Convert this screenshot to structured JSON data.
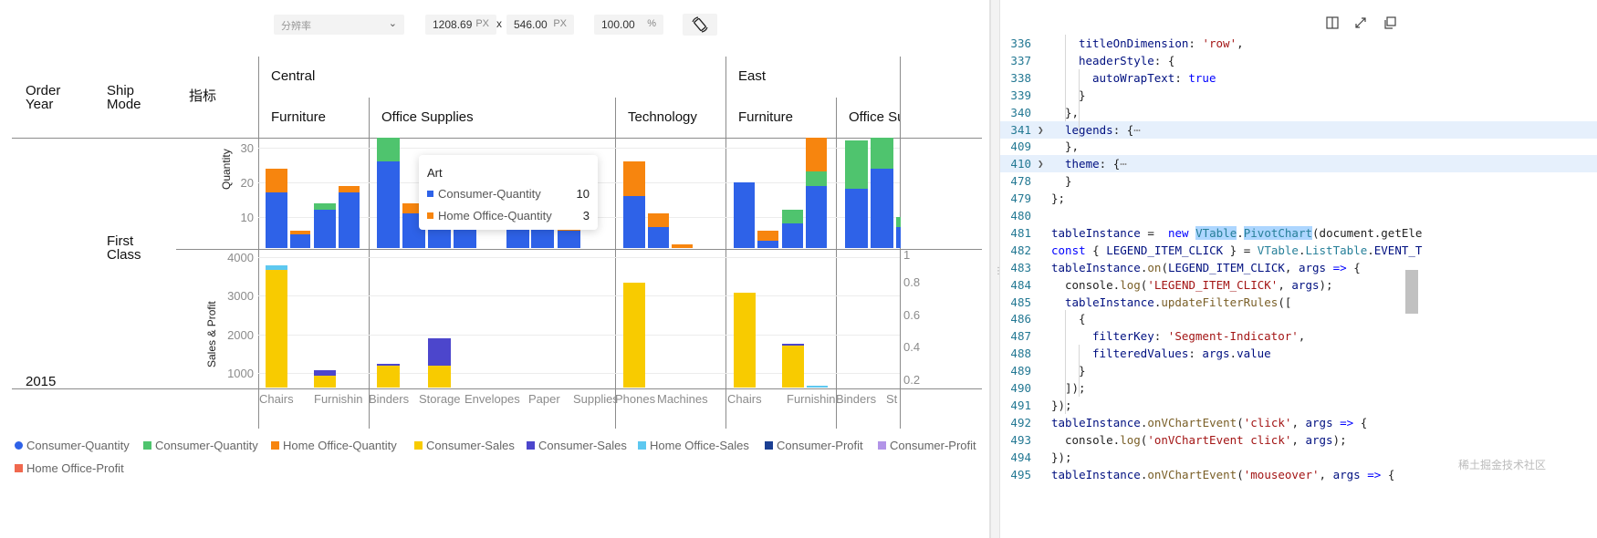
{
  "toolbar": {
    "resolution_placeholder": "分辨率",
    "width_value": "1208.69",
    "width_unit": "PX",
    "times": "x",
    "height_value": "546.00",
    "height_unit": "PX",
    "zoom_value": "100.00",
    "zoom_unit": "%"
  },
  "table": {
    "row_headers": [
      "Order\nYear",
      "Ship\nMode",
      "指标"
    ],
    "regions": [
      "Central",
      "East"
    ],
    "categories": [
      "Furniture",
      "Office Supplies",
      "Technology",
      "Furniture",
      "Office Su"
    ],
    "ship_mode": "First\nClass",
    "order_year": "2015",
    "axis_title_top": "Quantity",
    "axis_title_bottom": "Sales & Profit",
    "subcategory_labels": [
      "Chairs",
      "Furnishin",
      "Binders",
      "Storage",
      "Envelopes",
      "Paper",
      "Supplies",
      "Phones",
      "Machines",
      "Chairs",
      "Furnishin",
      "Binders",
      "St"
    ]
  },
  "tooltip": {
    "title": "Art",
    "rows": [
      {
        "label": "Consumer-Quantity",
        "value": "10",
        "color": "#2e62e8"
      },
      {
        "label": "Home Office-Quantity",
        "value": "3",
        "color": "#f7850e"
      }
    ]
  },
  "legend": [
    {
      "label": "Consumer-Quantity",
      "color": "#2e62e8",
      "shape": "circle"
    },
    {
      "label": "Consumer-Quantity",
      "color": "#4fc46e",
      "shape": "square"
    },
    {
      "label": "Home Office-Quantity",
      "color": "#f7850e",
      "shape": "square"
    },
    {
      "label": "Consumer-Sales",
      "color": "#f8cb00",
      "shape": "square"
    },
    {
      "label": "Consumer-Sales",
      "color": "#4c46cc",
      "shape": "square"
    },
    {
      "label": "Home Office-Sales",
      "color": "#5dc8f0",
      "shape": "square"
    },
    {
      "label": "Consumer-Profit",
      "color": "#1b3f93",
      "shape": "square"
    },
    {
      "label": "Consumer-Profit",
      "color": "#b294e8",
      "shape": "square"
    },
    {
      "label": "Home Office-Profit",
      "color": "#f0684e",
      "shape": "square"
    }
  ],
  "chart_data": [
    {
      "type": "bar",
      "title": "Quantity",
      "ylabel": "Quantity",
      "ylim": [
        0,
        33
      ],
      "yticks": [
        10,
        20,
        30
      ],
      "stacked": true,
      "categories": [
        "Chairs",
        "Furnishings",
        "Furnishings",
        "Furnishings",
        "Binders",
        "Art",
        "Storage",
        "Envelopes",
        "Paper",
        "Paper",
        "Supplies",
        "Phones",
        "Machines",
        "Machines",
        "Chairs",
        "Furnishings",
        "Furnishings",
        "Furnishings",
        "Binders",
        "Binders",
        "Storage"
      ],
      "series": [
        {
          "name": "Consumer-Quantity",
          "color": "#2e62e8",
          "values": [
            16,
            4,
            11,
            16,
            25,
            10,
            6,
            6,
            11,
            12,
            5,
            15,
            6,
            0,
            19,
            2,
            7,
            18,
            17,
            23,
            6
          ]
        },
        {
          "name": "Consumer-Quantity",
          "color": "#4fc46e",
          "values": [
            0,
            0,
            2,
            0,
            9,
            0,
            0,
            5,
            0,
            0,
            0,
            0,
            0,
            0,
            0,
            0,
            4,
            4,
            14,
            9,
            3
          ]
        },
        {
          "name": "Home Office-Quantity",
          "color": "#f7850e",
          "values": [
            7,
            1,
            0,
            2,
            0,
            3,
            0,
            3,
            0,
            0,
            1,
            10,
            4,
            1,
            0,
            3,
            0,
            11,
            0,
            1,
            0
          ]
        }
      ]
    },
    {
      "type": "bar",
      "title": "Sales & Profit",
      "ylabel": "Sales & Profit",
      "ylim": [
        700,
        4050
      ],
      "yticks": [
        1000,
        2000,
        3000,
        4000
      ],
      "right_axis_ticks": [
        "0.2",
        "0.4",
        "0.6",
        "0.8",
        "1"
      ],
      "stacked": true,
      "categories": [
        "Chairs",
        "Furnishings",
        "Binders",
        "Storage",
        "Phones",
        "Chairs",
        "Furnishings"
      ],
      "series": [
        {
          "name": "Consumer-Sales",
          "color": "#f8cb00",
          "values": [
            3680,
            920,
            1180,
            1180,
            3330,
            3080,
            1700
          ]
        },
        {
          "name": "Consumer-Sales",
          "color": "#4c46cc",
          "values": [
            0,
            140,
            50,
            720,
            0,
            0,
            50
          ]
        },
        {
          "name": "Home Office-Sales",
          "color": "#5dc8f0",
          "values": [
            100,
            0,
            0,
            0,
            0,
            0,
            0
          ]
        }
      ]
    }
  ],
  "code": {
    "lines": [
      {
        "n": "336",
        "fold": "",
        "hl": false,
        "indent": 4,
        "html": "<span class='prop'>titleOnDimension</span>: <span class='str'>'row'</span>,"
      },
      {
        "n": "337",
        "fold": "",
        "hl": false,
        "indent": 4,
        "html": "<span class='prop'>headerStyle</span>: {"
      },
      {
        "n": "338",
        "fold": "",
        "hl": false,
        "indent": 6,
        "html": "<span class='prop'>autoWrapText</span>: <span class='kw'>true</span>"
      },
      {
        "n": "339",
        "fold": "",
        "hl": false,
        "indent": 4,
        "html": "}"
      },
      {
        "n": "340",
        "fold": "",
        "hl": false,
        "indent": 2,
        "html": "},"
      },
      {
        "n": "341",
        "fold": ">",
        "hl": true,
        "indent": 2,
        "html": "<span class='prop'>legends</span>: {<span style='color:#888'>⋯</span>"
      },
      {
        "n": "409",
        "fold": "",
        "hl": false,
        "indent": 2,
        "html": "},"
      },
      {
        "n": "410",
        "fold": ">",
        "hl": true,
        "indent": 2,
        "html": "<span class='prop'>theme</span>: {<span style='color:#888'>⋯</span>"
      },
      {
        "n": "478",
        "fold": "",
        "hl": false,
        "indent": 2,
        "html": "}"
      },
      {
        "n": "479",
        "fold": "",
        "hl": false,
        "indent": 0,
        "html": "};"
      },
      {
        "n": "480",
        "fold": "",
        "hl": false,
        "indent": 0,
        "html": ""
      },
      {
        "n": "481",
        "fold": "",
        "hl": false,
        "indent": 0,
        "html": "<span class='prop'>tableInstance</span> =  <span class='kw'>new</span> <span class='cls' style='background:#add6ff'>VTable</span>.<span class='cls' style='background:#add6ff'>PivotChart</span>(document.getEle"
      },
      {
        "n": "482",
        "fold": "",
        "hl": false,
        "indent": 0,
        "html": "<span class='kw'>const</span> { <span class='prop'>LEGEND_ITEM_CLICK</span> } = <span class='cls'>VTable</span>.<span class='cls'>ListTable</span>.<span class='prop'>EVENT_T</span>"
      },
      {
        "n": "483",
        "fold": "",
        "hl": false,
        "indent": 0,
        "html": "<span class='prop'>tableInstance</span>.<span class='fn'>on</span>(<span class='prop'>LEGEND_ITEM_CLICK</span>, <span class='prop'>args</span> <span class='kw'>=&gt;</span> {"
      },
      {
        "n": "484",
        "fold": "",
        "hl": false,
        "indent": 2,
        "html": "console.<span class='fn'>log</span>(<span class='str'>'LEGEND_ITEM_CLICK'</span>, <span class='prop'>args</span>);"
      },
      {
        "n": "485",
        "fold": "",
        "hl": false,
        "indent": 2,
        "html": "<span class='prop'>tableInstance</span>.<span class='fn'>updateFilterRules</span>(["
      },
      {
        "n": "486",
        "fold": "",
        "hl": false,
        "indent": 4,
        "html": "{"
      },
      {
        "n": "487",
        "fold": "",
        "hl": false,
        "indent": 6,
        "html": "<span class='prop'>filterKey</span>: <span class='str'>'Segment-Indicator'</span>,"
      },
      {
        "n": "488",
        "fold": "",
        "hl": false,
        "indent": 6,
        "html": "<span class='prop'>filteredValues</span>: <span class='prop'>args</span>.<span class='prop'>value</span>"
      },
      {
        "n": "489",
        "fold": "",
        "hl": false,
        "indent": 4,
        "html": "}"
      },
      {
        "n": "490",
        "fold": "",
        "hl": false,
        "indent": 2,
        "html": "]);"
      },
      {
        "n": "491",
        "fold": "",
        "hl": false,
        "indent": 0,
        "html": "});"
      },
      {
        "n": "492",
        "fold": "",
        "hl": false,
        "indent": 0,
        "html": "<span class='prop'>tableInstance</span>.<span class='fn'>onVChartEvent</span>(<span class='str'>'click'</span>, <span class='prop'>args</span> <span class='kw'>=&gt;</span> {"
      },
      {
        "n": "493",
        "fold": "",
        "hl": false,
        "indent": 2,
        "html": "console.<span class='fn'>log</span>(<span class='str'>'onVChartEvent click'</span>, <span class='prop'>args</span>);"
      },
      {
        "n": "494",
        "fold": "",
        "hl": false,
        "indent": 0,
        "html": "});"
      },
      {
        "n": "495",
        "fold": "",
        "hl": false,
        "indent": 0,
        "html": "<span class='prop'>tableInstance</span>.<span class='fn'>onVChartEvent</span>(<span class='str'>'mouseover'</span>, <span class='prop'>args</span> <span class='kw'>=&gt;</span> {"
      }
    ]
  },
  "watermark": "稀土掘金技术社区"
}
